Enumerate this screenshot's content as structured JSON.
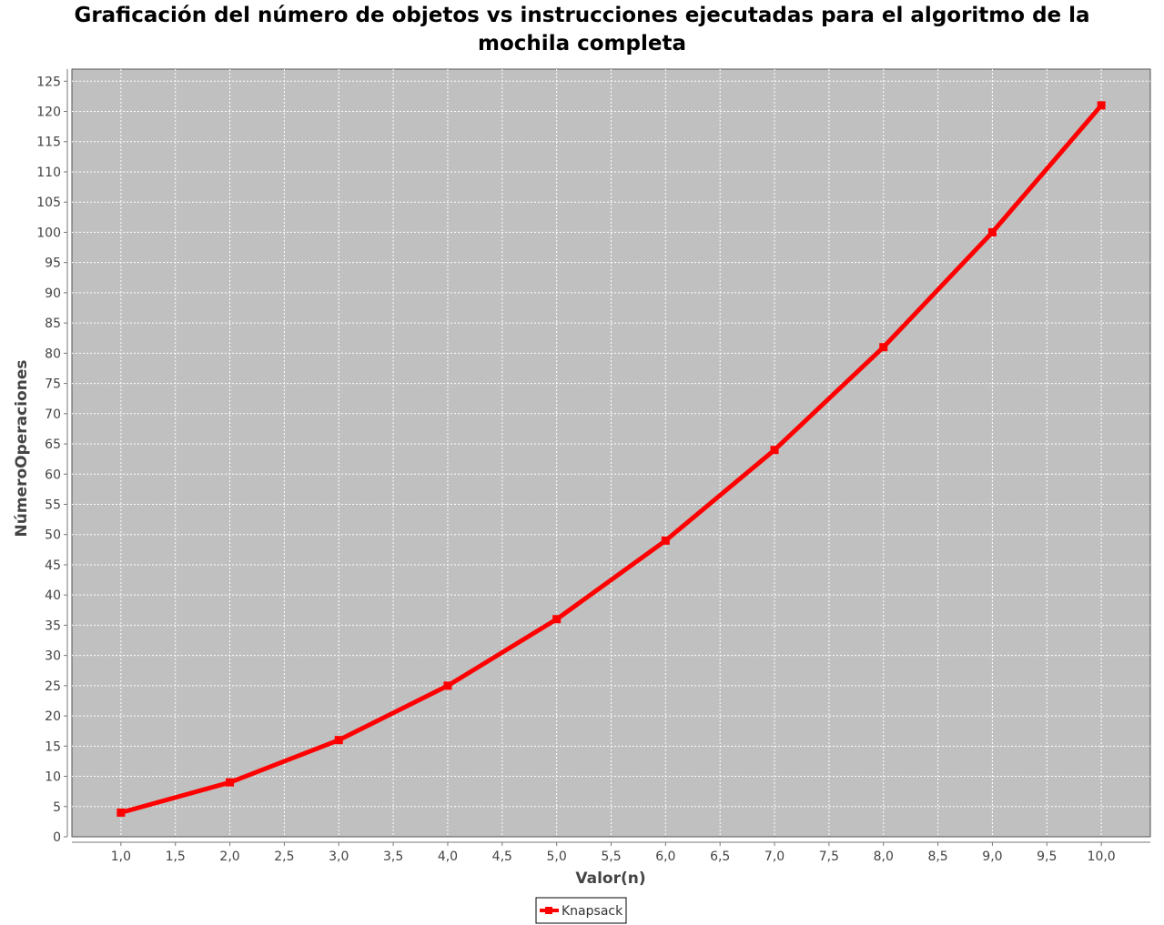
{
  "chart_data": {
    "type": "line",
    "title": "Graficación del número de objetos vs instrucciones ejecutadas para el algoritmo de la\nmochila completa",
    "xlabel": "Valor(n)",
    "ylabel": "NúmeroOperaciones",
    "xlim": [
      0.55,
      10.45
    ],
    "ylim": [
      0,
      127
    ],
    "x_ticks": [
      "1,0",
      "1,5",
      "2,0",
      "2,5",
      "3,0",
      "3,5",
      "4,0",
      "4,5",
      "5,0",
      "5,5",
      "6,0",
      "6,5",
      "7,0",
      "7,5",
      "8,0",
      "8,5",
      "9,0",
      "9,5",
      "10,0"
    ],
    "y_ticks": [
      0,
      5,
      10,
      15,
      20,
      25,
      30,
      35,
      40,
      45,
      50,
      55,
      60,
      65,
      70,
      75,
      80,
      85,
      90,
      95,
      100,
      105,
      110,
      115,
      120,
      125
    ],
    "grid": true,
    "legend_position": "bottom-center",
    "plot_background": "#c0c0c0",
    "series": [
      {
        "name": "Knapsack",
        "color": "#ff0000",
        "x": [
          1,
          2,
          3,
          4,
          5,
          6,
          7,
          8,
          9,
          10
        ],
        "y": [
          4,
          9,
          16,
          25,
          36,
          49,
          64,
          81,
          100,
          121
        ]
      }
    ]
  }
}
